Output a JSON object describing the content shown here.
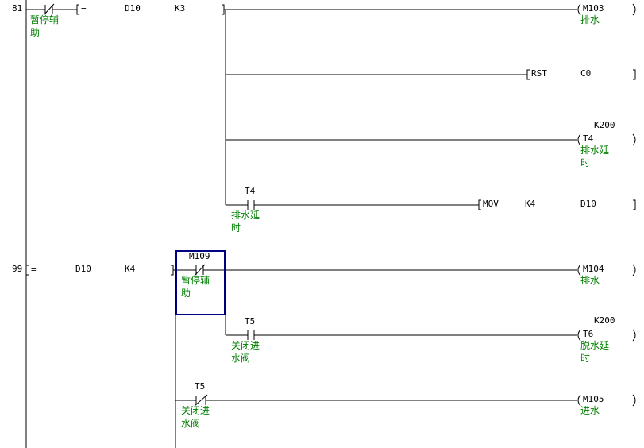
{
  "rungs": [
    {
      "step": "81",
      "contact": {
        "comment": "暂停辅助"
      },
      "compare": {
        "op": "=",
        "a": "D10",
        "b": "K3"
      },
      "outputs": [
        {
          "device": "M103",
          "comment": "排水"
        },
        {
          "instruction": "RST",
          "operand": "C0"
        },
        {
          "device": "T4",
          "setting": "K200",
          "comment": "排水延时"
        }
      ],
      "branch": {
        "contact": {
          "device": "T4",
          "comment": "排水延时"
        },
        "instruction": "MOV",
        "operands": [
          "K4",
          "D10"
        ]
      }
    },
    {
      "step": "99",
      "compare": {
        "op": "=",
        "a": "D10",
        "b": "K4"
      },
      "contact": {
        "device": "M109",
        "comment": "暂停辅助"
      },
      "outputs": [
        {
          "device": "M104",
          "comment": "排水"
        }
      ],
      "branches": [
        {
          "contact": {
            "device": "T5",
            "comment": "关闭进水阀"
          },
          "coil": {
            "device": "T6",
            "setting": "K200",
            "comment": "脱水延时"
          }
        },
        {
          "contact": {
            "device": "T5",
            "comment": "关闭进水阀"
          },
          "coil": {
            "device": "M105",
            "comment": "进水"
          }
        }
      ]
    }
  ]
}
